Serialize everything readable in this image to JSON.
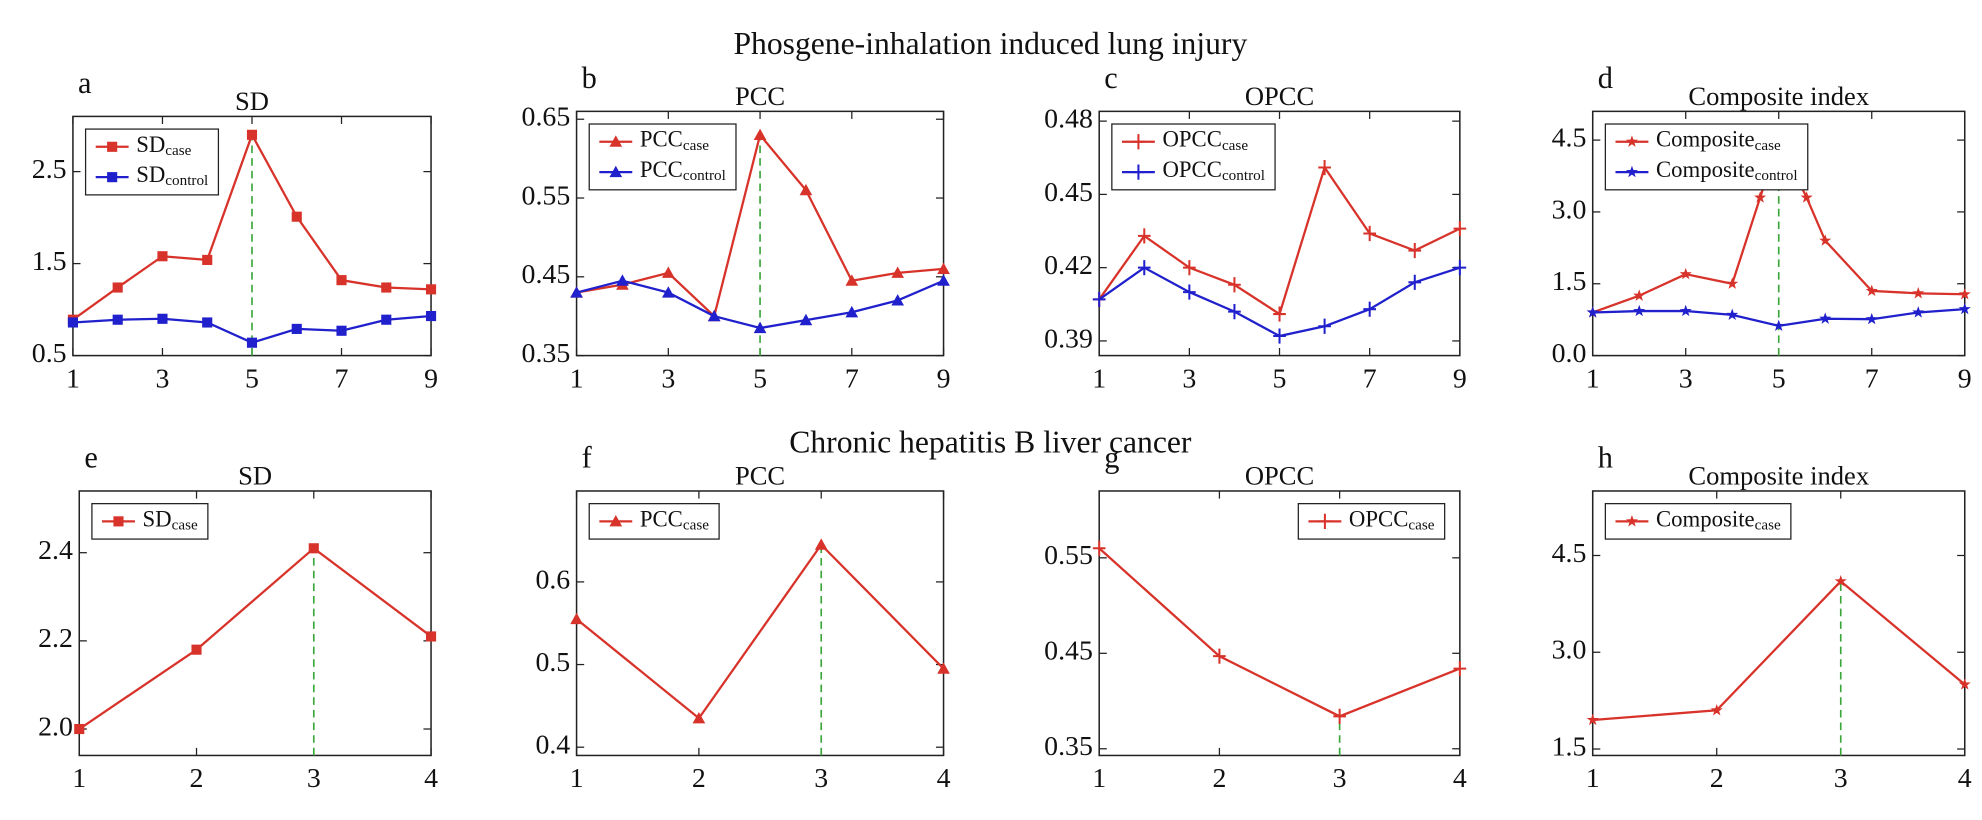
{
  "section_titles": [
    "Phosgene-inhalation induced lung injury",
    "Chronic hepatitis B liver cancer"
  ],
  "chart_data": [
    {
      "type": "line",
      "panel": "a",
      "title": "SD",
      "x": [
        1,
        2,
        3,
        4,
        5,
        6,
        7,
        8,
        9
      ],
      "xlim": [
        1,
        9
      ],
      "xticks": [
        1,
        3,
        5,
        7,
        9
      ],
      "ylim": [
        0.5,
        3.1
      ],
      "yticks": [
        0.5,
        1.5,
        2.5
      ],
      "highlight_x": 5,
      "legend": "upper left",
      "series": [
        {
          "name": "SD",
          "name_subscript": "case",
          "color": "#d8332a",
          "marker": "square",
          "values": [
            0.89,
            1.24,
            1.58,
            1.54,
            2.9,
            2.01,
            1.32,
            1.24,
            1.22
          ]
        },
        {
          "name": "SD",
          "name_subscript": "control",
          "color": "#2020cc",
          "marker": "square",
          "values": [
            0.86,
            0.89,
            0.9,
            0.86,
            0.64,
            0.79,
            0.77,
            0.89,
            0.93
          ]
        }
      ]
    },
    {
      "type": "line",
      "panel": "b",
      "title": "PCC",
      "x": [
        1,
        2,
        3,
        4,
        5,
        6,
        7,
        8,
        9
      ],
      "xlim": [
        1,
        9
      ],
      "xticks": [
        1,
        3,
        5,
        7,
        9
      ],
      "ylim": [
        0.35,
        0.66
      ],
      "yticks": [
        0.35,
        0.45,
        0.55,
        0.65
      ],
      "highlight_x": 5,
      "legend": "upper left",
      "series": [
        {
          "name": "PCC",
          "name_subscript": "case",
          "color": "#d8332a",
          "marker": "triangle",
          "values": [
            0.43,
            0.44,
            0.455,
            0.4,
            0.63,
            0.56,
            0.445,
            0.455,
            0.46
          ]
        },
        {
          "name": "PCC",
          "name_subscript": "control",
          "color": "#2020cc",
          "marker": "triangle",
          "values": [
            0.43,
            0.445,
            0.43,
            0.4,
            0.385,
            0.395,
            0.405,
            0.42,
            0.445
          ]
        }
      ]
    },
    {
      "type": "line",
      "panel": "c",
      "title": "OPCC",
      "x": [
        1,
        2,
        3,
        4,
        5,
        6,
        7,
        8,
        9
      ],
      "xlim": [
        1,
        9
      ],
      "xticks": [
        1,
        3,
        5,
        7,
        9
      ],
      "ylim": [
        0.384,
        0.484
      ],
      "yticks": [
        0.39,
        0.42,
        0.45,
        0.48
      ],
      "legend": "upper left",
      "series": [
        {
          "name": "OPCC",
          "name_subscript": "case",
          "color": "#d8332a",
          "marker": "plus",
          "values": [
            0.407,
            0.433,
            0.42,
            0.413,
            0.401,
            0.461,
            0.434,
            0.427,
            0.436
          ]
        },
        {
          "name": "OPCC",
          "name_subscript": "control",
          "color": "#2020cc",
          "marker": "plus",
          "values": [
            0.407,
            0.42,
            0.41,
            0.402,
            0.392,
            0.396,
            0.403,
            0.414,
            0.42
          ]
        }
      ]
    },
    {
      "type": "line",
      "panel": "d",
      "title": "Composite index",
      "xlim": [
        1,
        9
      ],
      "xticks": [
        1,
        3,
        5,
        7,
        9
      ],
      "ylim": [
        0,
        5.1
      ],
      "yticks": [
        {
          "value": 0,
          "label": "0.0"
        },
        1.5,
        {
          "value": 3,
          "label": "3.0"
        },
        4.5
      ],
      "highlight_x": 5,
      "legend": "upper left",
      "series": [
        {
          "name": "Composite",
          "name_subscript": "case",
          "color": "#d8332a",
          "marker": "star",
          "x": [
            1,
            2,
            3,
            4,
            4.6,
            5,
            5.6,
            6,
            7,
            8,
            9
          ],
          "values": [
            0.9,
            1.25,
            1.7,
            1.5,
            3.3,
            4.5,
            3.3,
            2.4,
            1.35,
            1.3,
            1.28
          ]
        },
        {
          "name": "Composite",
          "name_subscript": "control",
          "color": "#2020cc",
          "marker": "star",
          "x": [
            1,
            2,
            3,
            4,
            5,
            6,
            7,
            8,
            9
          ],
          "values": [
            0.9,
            0.93,
            0.93,
            0.85,
            0.62,
            0.77,
            0.76,
            0.9,
            0.97
          ]
        }
      ]
    },
    {
      "type": "line",
      "panel": "e",
      "title": "SD",
      "x": [
        1,
        2,
        3,
        4
      ],
      "xlim": [
        1,
        4
      ],
      "xticks": [
        1,
        2,
        3,
        4
      ],
      "ylim": [
        1.94,
        2.54
      ],
      "yticks": [
        {
          "value": 2,
          "label": "2.0"
        },
        2.2,
        2.4
      ],
      "highlight_x": 3,
      "legend": "upper left",
      "series": [
        {
          "name": "SD",
          "name_subscript": "case",
          "color": "#d8332a",
          "marker": "square",
          "values": [
            2.0,
            2.18,
            2.41,
            2.21
          ]
        }
      ]
    },
    {
      "type": "line",
      "panel": "f",
      "title": "PCC",
      "x": [
        1,
        2,
        3,
        4
      ],
      "xlim": [
        1,
        4
      ],
      "xticks": [
        1,
        2,
        3,
        4
      ],
      "ylim": [
        0.39,
        0.71
      ],
      "yticks": [
        0.4,
        0.5,
        0.6
      ],
      "highlight_x": 3,
      "legend": "upper left",
      "series": [
        {
          "name": "PCC",
          "name_subscript": "case",
          "color": "#d8332a",
          "marker": "triangle",
          "values": [
            0.555,
            0.435,
            0.645,
            0.495
          ]
        }
      ]
    },
    {
      "type": "line",
      "panel": "g",
      "title": "OPCC",
      "x": [
        1,
        2,
        3,
        4
      ],
      "xlim": [
        1,
        4
      ],
      "xticks": [
        1,
        2,
        3,
        4
      ],
      "ylim": [
        0.343,
        0.62
      ],
      "yticks": [
        0.35,
        0.45,
        0.55
      ],
      "highlight_x": 3,
      "legend": "upper right",
      "series": [
        {
          "name": "OPCC",
          "name_subscript": "case",
          "color": "#d8332a",
          "marker": "plus",
          "values": [
            0.56,
            0.447,
            0.384,
            0.434
          ]
        }
      ]
    },
    {
      "type": "line",
      "panel": "h",
      "title": "Composite index",
      "x": [
        1,
        2,
        3,
        4
      ],
      "xlim": [
        1,
        4
      ],
      "xticks": [
        1,
        2,
        3,
        4
      ],
      "ylim": [
        1.4,
        5.5
      ],
      "yticks": [
        1.5,
        {
          "value": 3,
          "label": "3.0"
        },
        4.5
      ],
      "highlight_x": 3,
      "legend": "upper left",
      "series": [
        {
          "name": "Composite",
          "name_subscript": "case",
          "color": "#d8332a",
          "marker": "star",
          "values": [
            1.95,
            2.1,
            4.1,
            2.5
          ]
        }
      ]
    }
  ]
}
